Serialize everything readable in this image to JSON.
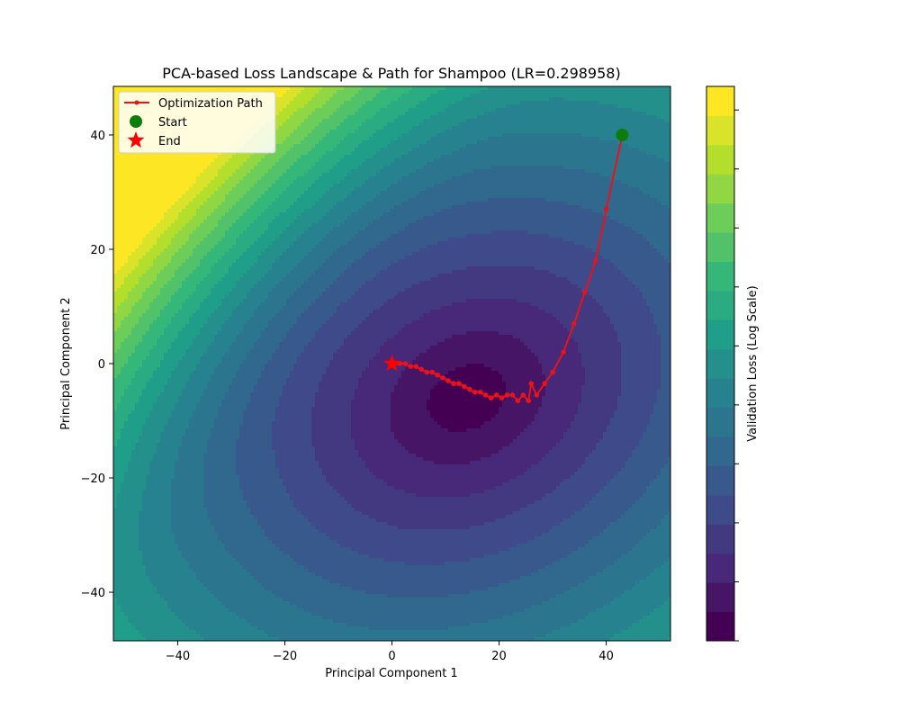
{
  "chart_data": {
    "type": "contour",
    "title": "PCA-based Loss Landscape & Path for Shampoo (LR=0.298958)",
    "xlabel": "Principal Component 1",
    "ylabel": "Principal Component 2",
    "xlim": [
      -52,
      52
    ],
    "ylim": [
      -48.5,
      48.5
    ],
    "xticks": [
      -40,
      -20,
      0,
      20,
      40
    ],
    "yticks": [
      -40,
      -20,
      0,
      20,
      40
    ],
    "xtick_labels": [
      "−40",
      "−20",
      "0",
      "20",
      "40"
    ],
    "ytick_labels": [
      "−40",
      "−20",
      "0",
      "20",
      "40"
    ],
    "grid": false,
    "legend_position": "upper-left",
    "legend": [
      {
        "label": "Optimization Path",
        "marker": "line-dot",
        "color": "#e8121a"
      },
      {
        "label": "Start",
        "marker": "circle",
        "color": "#0a7d0a"
      },
      {
        "label": "End",
        "marker": "star",
        "color": "#ff0000"
      }
    ],
    "colormap": "viridis",
    "levels": 19,
    "colorbar_label": "Validation Loss (Log Scale)",
    "colorbar_tick_count": 10,
    "contour_centers": [
      {
        "level": 1,
        "cx": 14,
        "cy": -6,
        "rx": 20,
        "ry": 16
      },
      {
        "level": 2,
        "cx": 16,
        "cy": -9,
        "rx": 30,
        "ry": 22
      },
      {
        "level": 3,
        "cx": 18,
        "cy": -10,
        "rx": 38,
        "ry": 30
      },
      {
        "level": 4,
        "cx": 20,
        "cy": -10,
        "rx": 46,
        "ry": 38
      }
    ],
    "path_series": {
      "name": "Optimization Path",
      "color": "#e8121a",
      "x": [
        43,
        40,
        38,
        36,
        34,
        32,
        30,
        28.5,
        27,
        26,
        25.5,
        24.5,
        23.5,
        22.5,
        21.5,
        20.5,
        19.5,
        18.5,
        17.5,
        16.5,
        15.5,
        14.5,
        13.5,
        12.5,
        11.5,
        10.5,
        9.5,
        8.5,
        7.5,
        6.5,
        5.5,
        4.5,
        3.5,
        2.5,
        1.5,
        0.5,
        0
      ],
      "y": [
        40,
        27,
        18,
        12.5,
        7,
        2,
        -1.5,
        -3.5,
        -5.5,
        -3.5,
        -6.5,
        -5.5,
        -6.5,
        -5.5,
        -5.5,
        -6,
        -5.5,
        -6,
        -5.5,
        -5,
        -5,
        -4.5,
        -4,
        -3.5,
        -3.5,
        -3,
        -2.5,
        -2,
        -1.5,
        -1.5,
        -1,
        -0.5,
        -0.5,
        0,
        0,
        0,
        0
      ]
    },
    "start_point": {
      "x": 43,
      "y": 40
    },
    "end_point": {
      "x": 0,
      "y": 0
    }
  }
}
